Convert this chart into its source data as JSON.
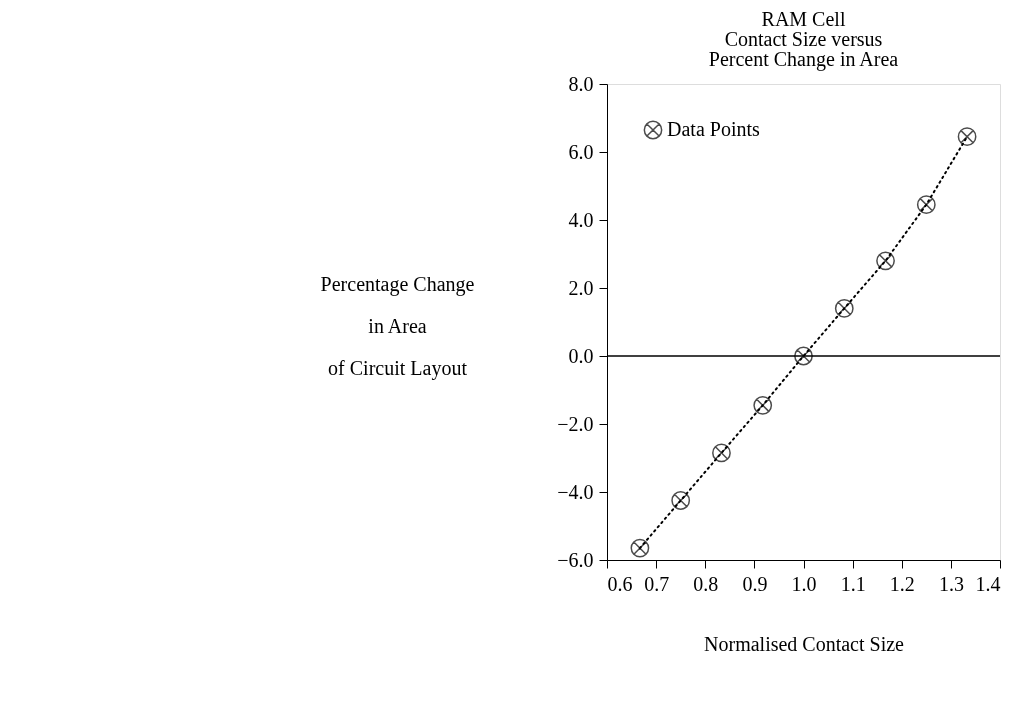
{
  "chart_data": {
    "type": "line",
    "title": [
      "RAM Cell",
      "Contact Size versus",
      "Percent Change in Area"
    ],
    "xlabel": "Normalised Contact Size",
    "ylabel": [
      "Percentage Change",
      "in Area",
      "of Circuit Layout"
    ],
    "x": [
      0.667,
      0.75,
      0.833,
      0.917,
      1.0,
      1.083,
      1.167,
      1.25,
      1.333
    ],
    "series": [
      {
        "name": "Data Points",
        "color": "#000000",
        "values": [
          -5.65,
          -4.25,
          -2.85,
          -1.45,
          0.0,
          1.4,
          2.8,
          4.45,
          6.45
        ]
      }
    ],
    "xlim": [
      0.6,
      1.4
    ],
    "xticks": [
      {
        "value": 0.6,
        "label": "0.6"
      },
      {
        "value": 0.7,
        "label": "0.7"
      },
      {
        "value": 0.8,
        "label": "0.8"
      },
      {
        "value": 0.9,
        "label": "0.9"
      },
      {
        "value": 1.0,
        "label": "1.0"
      },
      {
        "value": 1.1,
        "label": "1.1"
      },
      {
        "value": 1.2,
        "label": "1.2"
      },
      {
        "value": 1.3,
        "label": "1.3"
      },
      {
        "value": 1.4,
        "label": "1.4"
      }
    ],
    "ylim": [
      -6,
      8
    ],
    "yticks": [
      {
        "value": -6,
        "label": "−6.0"
      },
      {
        "value": -4,
        "label": "−4.0"
      },
      {
        "value": -2,
        "label": "−2.0"
      },
      {
        "value": 0,
        "label": "0.0"
      },
      {
        "value": 2,
        "label": "2.0"
      },
      {
        "value": 4,
        "label": "4.0"
      },
      {
        "value": 6,
        "label": "6.0"
      },
      {
        "value": 8,
        "label": "8.0"
      }
    ],
    "ref_lines": [
      {
        "axis": "y",
        "value": 0,
        "label": null
      }
    ],
    "marker": "cross",
    "line_style": "dotted",
    "legend": "top left",
    "grid": false
  }
}
